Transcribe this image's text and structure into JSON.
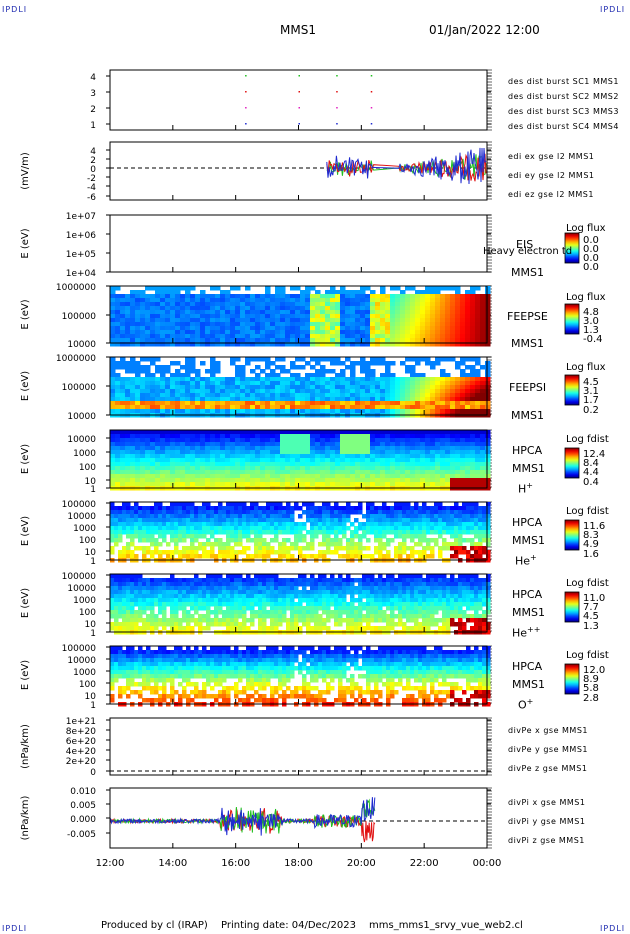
{
  "corner_label": "IPDLI",
  "header": {
    "spacecraft": "MMS1",
    "datetime": "01/Jan/2022 12:00"
  },
  "footer": {
    "produced_by": "Produced by cl (IRAP)",
    "printing_date": "Printing date: 04/Dec/2023",
    "script": "mms_mms1_srvy_vue_web2.cl"
  },
  "colors": {
    "mms1": "#1f2bd0",
    "mms2": "#e020c0",
    "mms3": "#e01010",
    "mms4": "#20c020"
  },
  "chart_data": {
    "type": "stacked-panels",
    "x_ticks": [
      "12:00",
      "14:00",
      "16:00",
      "18:00",
      "20:00",
      "22:00",
      "00:00"
    ],
    "x_range_hours": [
      12,
      24
    ],
    "panels": [
      {
        "id": "burst",
        "ylabel": "",
        "y_ticks": [
          "4",
          "3",
          "2",
          "1"
        ],
        "legend": [
          {
            "text": "des dist burst SC1 MMS1",
            "color": "#1f2bd0"
          },
          {
            "text": "des dist burst SC2 MMS2",
            "color": "#e020c0"
          },
          {
            "text": "des dist burst SC3 MMS3",
            "color": "#e01010"
          },
          {
            "text": "des dist burst SC4 MMS4",
            "color": "#20c020"
          }
        ],
        "burst_times_hours": [
          16.3,
          18.0,
          19.2,
          20.3
        ]
      },
      {
        "id": "edi",
        "ylabel": "(mV/m)",
        "y_ticks": [
          "4",
          "2",
          "0",
          "-2",
          "-4",
          "-6"
        ],
        "ylim": [
          -7,
          5
        ],
        "legend": [
          {
            "text": "edi ex gse l2 MMS1",
            "color": "#e01010"
          },
          {
            "text": "edi ey gse l2 MMS1",
            "color": "#20c020"
          },
          {
            "text": "edi ez gse l2 MMS1",
            "color": "#1f2bd0"
          }
        ]
      },
      {
        "id": "eis",
        "ylabel": "E (eV)",
        "y_ticks": [
          "1e+07",
          "1e+06",
          "1e+05",
          "1e+04"
        ],
        "instrument": "EIS",
        "subtitle": "Heavy electron td",
        "sc": "MMS1",
        "cb_label": "Log flux",
        "cb_ticks": [
          "0.0",
          "0.0",
          "0.0",
          "0.0"
        ]
      },
      {
        "id": "feeps_e",
        "ylabel": "E (eV)",
        "y_ticks": [
          "1000000",
          "100000",
          "10000"
        ],
        "instrument": "FEEPSE",
        "sc": "MMS1",
        "cb_label": "Log flux",
        "cb_ticks": [
          "4.8",
          "3.0",
          "1.3",
          "-0.4"
        ]
      },
      {
        "id": "feeps_i",
        "ylabel": "E (eV)",
        "y_ticks": [
          "1000000",
          "100000",
          "10000"
        ],
        "instrument": "FEEPSI",
        "sc": "MMS1",
        "cb_label": "Log flux",
        "cb_ticks": [
          "4.5",
          "3.1",
          "1.7",
          "0.2"
        ]
      },
      {
        "id": "hpca_h",
        "ylabel": "E (eV)",
        "y_ticks": [
          "10000",
          "1000",
          "100",
          "10",
          "1"
        ],
        "instrument": "HPCA",
        "sc": "MMS1",
        "species": "H",
        "charge": "+",
        "cb_label": "Log fdist",
        "cb_ticks": [
          "12.4",
          "8.4",
          "4.4",
          "0.4"
        ]
      },
      {
        "id": "hpca_he",
        "ylabel": "E (eV)",
        "y_ticks": [
          "100000",
          "10000",
          "1000",
          "100",
          "10",
          "1"
        ],
        "instrument": "HPCA",
        "sc": "MMS1",
        "species": "He",
        "charge": "+",
        "cb_label": "Log fdist",
        "cb_ticks": [
          "11.6",
          "8.3",
          "4.9",
          "1.6"
        ]
      },
      {
        "id": "hpca_he2",
        "ylabel": "E (eV)",
        "y_ticks": [
          "100000",
          "10000",
          "1000",
          "100",
          "10",
          "1"
        ],
        "instrument": "HPCA",
        "sc": "MMS1",
        "species": "He",
        "charge": "++",
        "cb_label": "Log fdist",
        "cb_ticks": [
          "11.0",
          "7.7",
          "4.5",
          "1.3"
        ]
      },
      {
        "id": "hpca_o",
        "ylabel": "E (eV)",
        "y_ticks": [
          "100000",
          "10000",
          "1000",
          "100",
          "10",
          "1"
        ],
        "instrument": "HPCA",
        "sc": "MMS1",
        "species": "O",
        "charge": "+",
        "cb_label": "Log fdist",
        "cb_ticks": [
          "12.0",
          "8.9",
          "5.8",
          "2.8"
        ]
      },
      {
        "id": "divpe",
        "ylabel": "(nPa/km)",
        "y_ticks": [
          "1e+21",
          "8e+20",
          "6e+20",
          "4e+20",
          "2e+20",
          "0"
        ],
        "legend": [
          {
            "text": "divPe x gse MMS1",
            "color": "#e01010"
          },
          {
            "text": "divPe y gse MMS1",
            "color": "#20c020"
          },
          {
            "text": "divPe z gse MMS1",
            "color": "#1f2bd0"
          }
        ]
      },
      {
        "id": "divpi",
        "ylabel": "(nPa/km)",
        "y_ticks": [
          "0.010",
          "0.005",
          "0.000",
          "-0.005"
        ],
        "ylim": [
          -0.009,
          0.011
        ],
        "legend": [
          {
            "text": "divPi x gse MMS1",
            "color": "#e01010"
          },
          {
            "text": "divPi y gse MMS1",
            "color": "#20c020"
          },
          {
            "text": "divPi z gse MMS1",
            "color": "#1f2bd0"
          }
        ]
      }
    ]
  }
}
